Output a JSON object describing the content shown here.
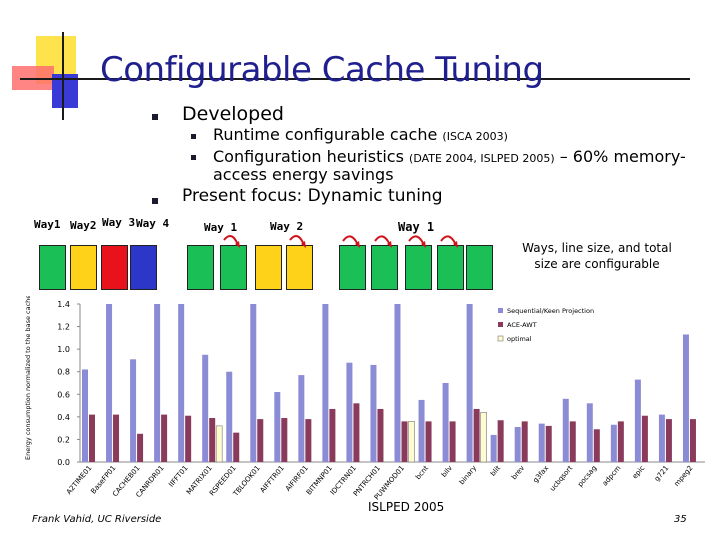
{
  "slide": {
    "title": "Configurable Cache Tuning",
    "bullets": {
      "developed": "Developed",
      "runtime": "Runtime configurable cache",
      "runtime_ref": "(ISCA 2003)",
      "heuristics_a": "Configuration heuristics",
      "heuristics_ref": "(DATE 2004, ISLPED 2005)",
      "heuristics_b": "– 60% memory-",
      "heuristics_c": "access energy savings",
      "present": "Present focus: Dynamic tuning"
    },
    "ways": {
      "labels_left": [
        "Way1",
        "Way2",
        "Way 3",
        "Way 4"
      ],
      "label_mid1": "Way 1",
      "label_mid2": "Way 2",
      "label_right": "Way 1",
      "caption": "Ways, line size, and total size are configurable"
    },
    "footer": {
      "author": "Frank Vahid, UC Riverside",
      "conf": "ISLPED 2005",
      "page": "35"
    },
    "colors": {
      "title": "#1f1f8f",
      "series1": "#8c8cd6",
      "series2": "#8a3a5a",
      "series3": "#fffbd0"
    }
  },
  "chart_data": {
    "type": "bar",
    "ylabel": "Energy consumption normalized to the base cache configuration",
    "ylim": [
      0,
      1.4
    ],
    "yticks": [
      "0.0",
      "0.2",
      "0.4",
      "0.6",
      "0.8",
      "1.0",
      "1.2",
      "1.4"
    ],
    "categories": [
      "A2TIME01",
      "BaseFP01",
      "CACHEB01",
      "CANRDR01",
      "IIFFT01",
      "MATRIX01",
      "RSPEED01",
      "TBLOOK01",
      "AIFFTR01",
      "AIFIRF01",
      "BITMNP01",
      "IDCTRN01",
      "PNTRCH01",
      "PUWMOD01",
      "bcnt",
      "bilv",
      "binary",
      "blit",
      "brev",
      "g3fax",
      "ucbqsort",
      "pocsag",
      "adpcm",
      "epic",
      "g721",
      "mpeg2"
    ],
    "series": [
      {
        "name": "Sequential/Keen Projection",
        "values": [
          0.82,
          1.4,
          0.91,
          1.4,
          1.4,
          0.95,
          0.8,
          1.4,
          0.62,
          0.77,
          1.4,
          0.88,
          0.86,
          1.4,
          0.55,
          0.7,
          1.4,
          0.24,
          0.31,
          0.34,
          0.56,
          0.52,
          0.33,
          0.73,
          0.42,
          1.13
        ]
      },
      {
        "name": "ACE-AWT",
        "values": [
          0.42,
          0.42,
          0.25,
          0.42,
          0.41,
          0.39,
          0.26,
          0.38,
          0.39,
          0.38,
          0.47,
          0.52,
          0.47,
          0.36,
          0.36,
          0.36,
          0.47,
          0.37,
          0.36,
          0.32,
          0.36,
          0.29,
          0.36,
          0.41,
          0.38,
          0.38
        ]
      },
      {
        "name": "optimal",
        "values": [
          0,
          0,
          0,
          0,
          0,
          0.32,
          0,
          0,
          0,
          0,
          0,
          0,
          0,
          0.36,
          0,
          0,
          0.44,
          0,
          0,
          0,
          0,
          0,
          0,
          0,
          0,
          0
        ]
      }
    ],
    "legend_position": "top-right"
  }
}
